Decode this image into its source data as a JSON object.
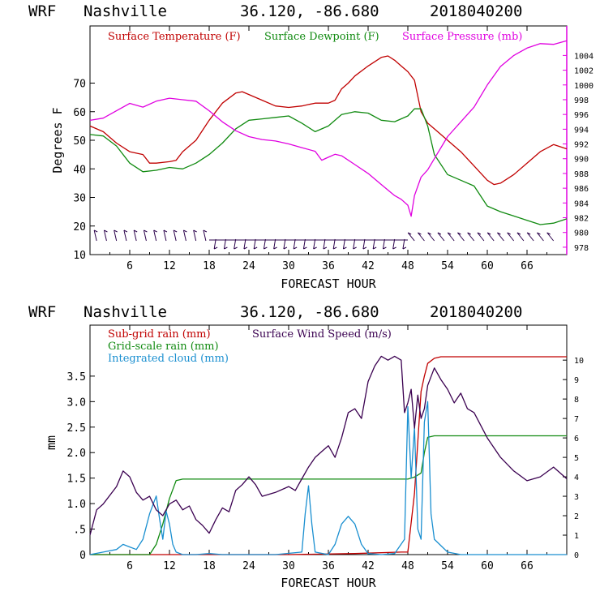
{
  "panels": [
    {
      "header": {
        "model": "WRF",
        "station": "Nashville",
        "coords": "36.120, -86.680",
        "init": "2018040200"
      },
      "legend": [
        {
          "label": "Surface Temperature (F)",
          "color": "#c00000"
        },
        {
          "label": "Surface Dewpoint (F)",
          "color": "#108a10"
        },
        {
          "label": "Surface Pressure (mb)",
          "color": "#e000e0"
        }
      ]
    },
    {
      "header": {
        "model": "WRF",
        "station": "Nashville",
        "coords": "36.120, -86.680",
        "init": "2018040200"
      },
      "legend": [
        {
          "label": "Sub-grid rain (mm)",
          "color": "#c00000"
        },
        {
          "label": "Grid-scale rain (mm)",
          "color": "#108a10"
        },
        {
          "label": "Integrated cloud (mm)",
          "color": "#1a8fd0"
        },
        {
          "label": "Surface Wind Speed (m/s)",
          "color": "#3a0050"
        }
      ]
    }
  ],
  "chart_data": [
    {
      "type": "line",
      "xlabel": "FORECAST HOUR",
      "ylabel": "Degrees F",
      "x_ticks": [
        "6",
        "12",
        "18",
        "24",
        "30",
        "36",
        "42",
        "48",
        "54",
        "60",
        "66"
      ],
      "xlim": [
        0,
        72
      ],
      "y_ticks": [
        "10",
        "20",
        "30",
        "40",
        "50",
        "60",
        "70"
      ],
      "ylim": [
        10,
        90
      ],
      "y2_ticks": [
        "978",
        "980",
        "982",
        "984",
        "986",
        "988",
        "990",
        "992",
        "994",
        "996",
        "998",
        "1000",
        "1002",
        "1004"
      ],
      "y2lim": [
        977,
        1008
      ],
      "series": [
        {
          "name": "Surface Temperature (F)",
          "color": "#c00000",
          "axis": "left",
          "x": [
            0,
            2,
            4,
            6,
            8,
            9,
            10,
            12,
            13,
            14,
            16,
            18,
            20,
            22,
            23,
            24,
            26,
            28,
            30,
            32,
            33,
            34,
            36,
            37,
            38,
            39,
            40,
            42,
            44,
            45,
            46,
            47,
            48,
            49,
            50,
            51,
            52,
            54,
            56,
            58,
            60,
            61,
            62,
            64,
            66,
            68,
            70,
            72
          ],
          "y": [
            55,
            53,
            49,
            46,
            45,
            42,
            42,
            42.5,
            43,
            46,
            50,
            57,
            63,
            66.5,
            67,
            66,
            64,
            62,
            61.5,
            62,
            62.5,
            63,
            63,
            64,
            68,
            70,
            72.5,
            76,
            79,
            79.5,
            78,
            76,
            74,
            71,
            60,
            56,
            54,
            50,
            46,
            41,
            36,
            34.5,
            35,
            38,
            42,
            46,
            48.5,
            47
          ]
        },
        {
          "name": "Surface Dewpoint (F)",
          "color": "#108a10",
          "axis": "left",
          "x": [
            0,
            2,
            4,
            6,
            8,
            10,
            12,
            14,
            16,
            18,
            20,
            22,
            24,
            26,
            28,
            30,
            32,
            34,
            36,
            38,
            40,
            42,
            44,
            46,
            48,
            49,
            50,
            51,
            52,
            54,
            56,
            58,
            60,
            62,
            64,
            66,
            68,
            70,
            72
          ],
          "y": [
            52,
            51.5,
            48,
            42,
            39,
            39.5,
            40.5,
            40,
            42,
            45,
            49,
            54,
            57,
            57.5,
            58,
            58.5,
            56,
            53,
            55,
            59,
            60,
            59.5,
            57,
            56.5,
            58.5,
            61,
            61,
            55,
            45,
            38,
            36,
            34,
            27,
            25,
            23.5,
            22,
            20.5,
            21,
            22.5
          ]
        },
        {
          "name": "Surface Pressure (mb)",
          "color": "#e000e0",
          "axis": "right",
          "x": [
            0,
            2,
            4,
            6,
            8,
            10,
            12,
            14,
            16,
            18,
            20,
            22,
            24,
            26,
            28,
            30,
            32,
            34,
            35,
            36,
            37,
            38,
            40,
            42,
            44,
            46,
            47,
            48,
            48.5,
            49,
            50,
            51,
            52,
            54,
            56,
            58,
            60,
            62,
            64,
            66,
            68,
            70,
            72
          ],
          "y": [
            995.2,
            995.5,
            996.5,
            997.5,
            997,
            997.8,
            998.2,
            998,
            997.8,
            996.5,
            995,
            993.8,
            993,
            992.6,
            992.4,
            992,
            991.5,
            991,
            989.8,
            990.2,
            990.6,
            990.4,
            989.2,
            988,
            986.5,
            985,
            984.5,
            983.7,
            982.2,
            985,
            987.5,
            988.5,
            990,
            993,
            995,
            997,
            1000,
            1002.5,
            1004,
            1005,
            1005.6,
            1005.5,
            1006
          ]
        }
      ],
      "wind_barbs_row": "y=16 (approx., arrows along bottom)"
    },
    {
      "type": "line",
      "xlabel": "FORECAST HOUR",
      "ylabel": "mm",
      "x_ticks": [
        "6",
        "12",
        "18",
        "24",
        "30",
        "36",
        "42",
        "48",
        "54",
        "60",
        "66"
      ],
      "xlim": [
        0,
        72
      ],
      "y_ticks": [
        "0",
        ".5",
        "1.0",
        "1.5",
        "2.0",
        "2.5",
        "3.0",
        "3.5"
      ],
      "ylim": [
        0,
        4.5
      ],
      "y2_ticks": [
        "0",
        "1",
        "2",
        "3",
        "4",
        "5",
        "6",
        "7",
        "8",
        "9",
        "10"
      ],
      "y2lim": [
        0,
        11.8
      ],
      "series": [
        {
          "name": "Sub-grid rain (mm)",
          "color": "#c00000",
          "axis": "left",
          "x": [
            0,
            10,
            20,
            30,
            40,
            47,
            48,
            49,
            50,
            50.5,
            51,
            52,
            53,
            60,
            72
          ],
          "y": [
            0,
            0,
            0,
            0,
            0.02,
            0.05,
            0.05,
            1.2,
            3.2,
            3.5,
            3.75,
            3.85,
            3.88,
            3.88,
            3.88
          ]
        },
        {
          "name": "Grid-scale rain (mm)",
          "color": "#108a10",
          "axis": "left",
          "x": [
            0,
            9,
            10,
            11,
            12,
            13,
            14,
            20,
            30,
            40,
            48,
            49,
            50,
            50.5,
            51,
            52,
            60,
            72
          ],
          "y": [
            0,
            0,
            0.2,
            0.6,
            1.1,
            1.45,
            1.48,
            1.48,
            1.48,
            1.48,
            1.48,
            1.52,
            1.6,
            2.0,
            2.3,
            2.33,
            2.33,
            2.33
          ]
        },
        {
          "name": "Integrated cloud (mm)",
          "color": "#1a8fd0",
          "axis": "left",
          "x": [
            0,
            2,
            4,
            5,
            6,
            7,
            8,
            9,
            10,
            10.5,
            11,
            11.5,
            12,
            12.5,
            13,
            14,
            16,
            18,
            20,
            24,
            28,
            32,
            32.5,
            33,
            33.5,
            34,
            36,
            37,
            38,
            39,
            40,
            41,
            42,
            44,
            46,
            47.5,
            48,
            48.5,
            49,
            49.5,
            50,
            50.5,
            51,
            51.5,
            52,
            54,
            56,
            60,
            72
          ],
          "y": [
            0,
            0.05,
            0.1,
            0.2,
            0.15,
            0.1,
            0.3,
            0.8,
            1.15,
            0.7,
            0.3,
            0.85,
            0.6,
            0.2,
            0.05,
            0,
            0,
            0.02,
            0,
            0,
            0,
            0.05,
            0.8,
            1.35,
            0.6,
            0.05,
            0,
            0.2,
            0.6,
            0.75,
            0.6,
            0.2,
            0.02,
            0,
            0.02,
            0.3,
            2.9,
            1.5,
            2.5,
            0.5,
            0.3,
            2.6,
            3.0,
            0.8,
            0.3,
            0.05,
            0,
            0,
            0
          ]
        },
        {
          "name": "Surface Wind Speed (m/s)",
          "color": "#3a0050",
          "axis": "right",
          "x": [
            0,
            1,
            2,
            4,
            5,
            6,
            7,
            8,
            9,
            10,
            11,
            12,
            13,
            14,
            15,
            16,
            17,
            18,
            19,
            20,
            21,
            22,
            23,
            24,
            25,
            26,
            28,
            30,
            31,
            32,
            33,
            34,
            35,
            36,
            37,
            38,
            39,
            40,
            41,
            42,
            43,
            44,
            45,
            46,
            47,
            47.5,
            48,
            48.5,
            49,
            49.5,
            50,
            50.5,
            51,
            52,
            53,
            54,
            55,
            56,
            57,
            58,
            60,
            62,
            64,
            66,
            68,
            70,
            72
          ],
          "y": [
            1,
            2.3,
            2.6,
            3.5,
            4.3,
            4.0,
            3.2,
            2.8,
            3.0,
            2.3,
            2.0,
            2.6,
            2.8,
            2.3,
            2.5,
            1.8,
            1.5,
            1.1,
            1.8,
            2.4,
            2.2,
            3.3,
            3.6,
            4.0,
            3.6,
            3.0,
            3.2,
            3.5,
            3.3,
            3.9,
            4.5,
            5.0,
            5.3,
            5.6,
            5.0,
            6.0,
            7.3,
            7.5,
            7.0,
            8.9,
            9.7,
            10.2,
            10.0,
            10.2,
            10.0,
            7.3,
            7.8,
            8.5,
            6.5,
            8.2,
            7.0,
            7.5,
            8.7,
            9.6,
            9.0,
            8.5,
            7.8,
            8.3,
            7.5,
            7.3,
            6.0,
            5.0,
            4.3,
            3.8,
            4.0,
            4.5,
            3.9
          ]
        }
      ]
    }
  ]
}
